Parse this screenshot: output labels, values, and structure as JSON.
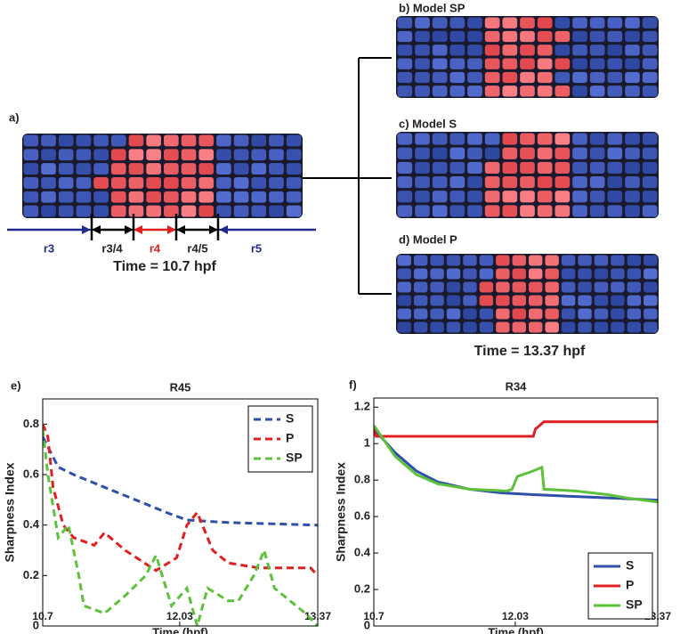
{
  "figure": {
    "a": {
      "label": "a)",
      "regions": [
        "r3",
        "r3/4",
        "r4",
        "r4/5",
        "r5"
      ],
      "time": "Time = 10.7 hpf"
    },
    "b": {
      "label": "b) Model SP"
    },
    "c": {
      "label": "c) Model S"
    },
    "d": {
      "label": "d) Model P"
    },
    "time_right": "Time = 13.37 hpf"
  },
  "chart_data": [
    {
      "type": "line",
      "panel": "e)",
      "title": "R45",
      "xlabel": "Time (hpf)",
      "ylabel": "Sharpness Index",
      "xlim": [
        10.7,
        13.37
      ],
      "xticks": [
        10.7,
        12.03,
        13.37
      ],
      "ylim": [
        0,
        0.9
      ],
      "yticks": [
        0,
        0.2,
        0.4,
        0.6,
        0.8
      ],
      "linestyle": "dashed",
      "legend": "upper right",
      "series": [
        {
          "name": "S",
          "color": "#2f4fa8",
          "x": [
            10.7,
            10.85,
            11.0,
            11.3,
            11.6,
            11.9,
            12.1,
            12.5,
            13.37
          ],
          "values": [
            0.75,
            0.63,
            0.6,
            0.55,
            0.5,
            0.45,
            0.42,
            0.41,
            0.4
          ]
        },
        {
          "name": "P",
          "color": "#e02020",
          "x": [
            10.7,
            10.75,
            10.8,
            10.9,
            11.0,
            11.2,
            11.3,
            11.5,
            11.8,
            12.0,
            12.1,
            12.2,
            12.35,
            12.5,
            12.8,
            13.3,
            13.37
          ],
          "values": [
            0.8,
            0.75,
            0.55,
            0.4,
            0.35,
            0.32,
            0.37,
            0.3,
            0.22,
            0.27,
            0.4,
            0.45,
            0.3,
            0.25,
            0.23,
            0.23,
            0.2
          ]
        },
        {
          "name": "SP",
          "color": "#5dc23a",
          "x": [
            10.7,
            10.75,
            10.85,
            10.95,
            11.05,
            11.1,
            11.3,
            11.5,
            11.7,
            11.8,
            11.95,
            12.1,
            12.2,
            12.3,
            12.5,
            12.6,
            12.75,
            12.85,
            12.95,
            13.1,
            13.25,
            13.37
          ],
          "values": [
            0.78,
            0.6,
            0.35,
            0.4,
            0.2,
            0.08,
            0.05,
            0.12,
            0.2,
            0.28,
            0.08,
            0.15,
            0.0,
            0.15,
            0.1,
            0.1,
            0.2,
            0.3,
            0.15,
            0.1,
            0.05,
            0.0
          ]
        }
      ]
    },
    {
      "type": "line",
      "panel": "f)",
      "title": "R34",
      "xlabel": "Time (hpf)",
      "ylabel": "Sharpness Index",
      "xlim": [
        10.7,
        13.37
      ],
      "xticks": [
        10.7,
        12.03,
        13.37
      ],
      "ylim": [
        0,
        1.25
      ],
      "yticks": [
        0,
        0.2,
        0.4,
        0.6,
        0.8,
        1,
        1.2
      ],
      "linestyle": "solid",
      "legend": "lower right",
      "series": [
        {
          "name": "S",
          "color": "#2f4fa8",
          "x": [
            10.7,
            10.9,
            11.1,
            11.3,
            11.6,
            11.9,
            12.2,
            12.6,
            13.0,
            13.37
          ],
          "values": [
            1.08,
            0.95,
            0.85,
            0.79,
            0.75,
            0.73,
            0.72,
            0.71,
            0.7,
            0.69
          ]
        },
        {
          "name": "P",
          "color": "#e02020",
          "x": [
            10.7,
            10.72,
            12.2,
            12.22,
            12.3,
            13.37
          ],
          "values": [
            1.08,
            1.04,
            1.04,
            1.08,
            1.12,
            1.12
          ]
        },
        {
          "name": "SP",
          "color": "#5dc23a",
          "x": [
            10.7,
            10.9,
            11.1,
            11.3,
            11.6,
            11.95,
            12.0,
            12.05,
            12.2,
            12.28,
            12.3,
            12.6,
            12.9,
            13.1,
            13.37
          ],
          "values": [
            1.1,
            0.93,
            0.83,
            0.78,
            0.75,
            0.74,
            0.75,
            0.82,
            0.85,
            0.87,
            0.75,
            0.74,
            0.72,
            0.7,
            0.68
          ]
        }
      ]
    }
  ]
}
